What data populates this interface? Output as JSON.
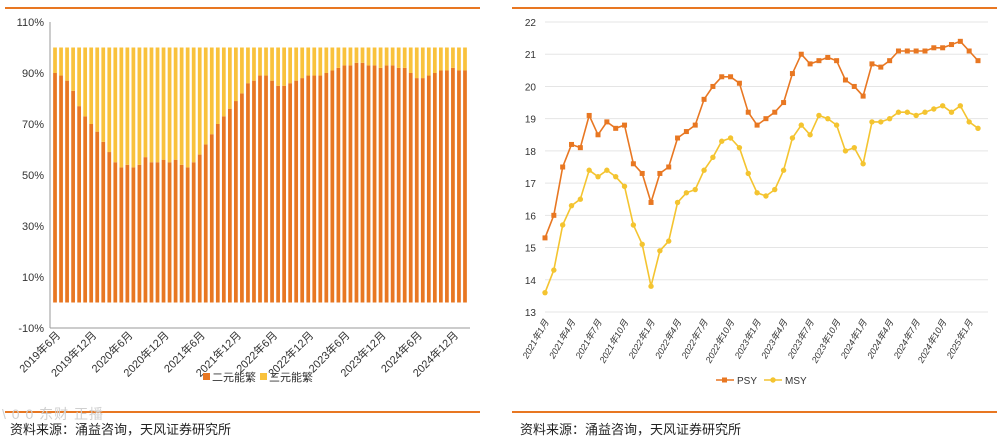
{
  "colors": {
    "rule": "#E87722",
    "binary": "#E87722",
    "ternary": "#F9C23C",
    "psy": "#E87722",
    "msy": "#F4C430",
    "axis": "#999999",
    "grid": "#e5e5e5"
  },
  "source_left": "资料来源：涌益咨询，天风证券研究所",
  "source_right": "资料来源：涌益咨询，天风证券研究所",
  "watermark": "\\ 0 0 东财  正播",
  "chart_data": [
    {
      "type": "bar",
      "stacked": true,
      "y_ticks": [
        "110%",
        "90%",
        "70%",
        "50%",
        "30%",
        "10%",
        "-10%"
      ],
      "ylim": [
        -0.1,
        1.1
      ],
      "x_tick_labels": [
        "2019年6月",
        "2019年12月",
        "2020年6月",
        "2020年12月",
        "2021年6月",
        "2021年12月",
        "2022年6月",
        "2022年12月",
        "2023年6月",
        "2023年12月",
        "2024年6月",
        "2024年12月"
      ],
      "x_start": "2019年6月",
      "series": [
        {
          "name": "二元能繁",
          "values": [
            0.9,
            0.89,
            0.87,
            0.83,
            0.77,
            0.73,
            0.7,
            0.67,
            0.63,
            0.59,
            0.55,
            0.53,
            0.54,
            0.53,
            0.54,
            0.57,
            0.55,
            0.55,
            0.56,
            0.55,
            0.56,
            0.54,
            0.53,
            0.55,
            0.58,
            0.62,
            0.66,
            0.7,
            0.73,
            0.76,
            0.79,
            0.82,
            0.86,
            0.87,
            0.89,
            0.89,
            0.87,
            0.85,
            0.85,
            0.86,
            0.87,
            0.88,
            0.89,
            0.89,
            0.89,
            0.9,
            0.91,
            0.92,
            0.93,
            0.93,
            0.94,
            0.94,
            0.93,
            0.93,
            0.92,
            0.93,
            0.93,
            0.92,
            0.92,
            0.9,
            0.88,
            0.88,
            0.89,
            0.9,
            0.91,
            0.91,
            0.92,
            0.91,
            0.91
          ]
        },
        {
          "name": "三元能繁",
          "values": [
            0.1,
            0.11,
            0.13,
            0.17,
            0.23,
            0.27,
            0.3,
            0.33,
            0.37,
            0.41,
            0.45,
            0.47,
            0.46,
            0.47,
            0.46,
            0.43,
            0.45,
            0.45,
            0.44,
            0.45,
            0.44,
            0.46,
            0.47,
            0.45,
            0.42,
            0.38,
            0.34,
            0.3,
            0.27,
            0.24,
            0.21,
            0.18,
            0.14,
            0.13,
            0.11,
            0.11,
            0.13,
            0.15,
            0.15,
            0.14,
            0.13,
            0.12,
            0.11,
            0.11,
            0.11,
            0.1,
            0.09,
            0.08,
            0.07,
            0.07,
            0.06,
            0.06,
            0.07,
            0.07,
            0.08,
            0.07,
            0.07,
            0.08,
            0.08,
            0.1,
            0.12,
            0.12,
            0.11,
            0.1,
            0.09,
            0.09,
            0.08,
            0.09,
            0.09
          ]
        }
      ]
    },
    {
      "type": "line",
      "y_ticks": [
        "22",
        "21",
        "20",
        "19",
        "18",
        "17",
        "16",
        "15",
        "14",
        "13"
      ],
      "ylim": [
        13,
        22
      ],
      "x_tick_labels": [
        "2021年1月",
        "2021年4月",
        "2021年7月",
        "2021年10月",
        "2022年1月",
        "2022年4月",
        "2022年7月",
        "2022年10月",
        "2023年1月",
        "2023年4月",
        "2023年7月",
        "2023年10月",
        "2024年1月",
        "2024年4月",
        "2024年7月",
        "2024年10月",
        "2025年1月"
      ],
      "series": [
        {
          "name": "PSY",
          "values": [
            15.3,
            16.0,
            17.5,
            18.2,
            18.1,
            19.1,
            18.5,
            18.9,
            18.7,
            18.8,
            17.6,
            17.3,
            16.4,
            17.3,
            17.5,
            18.4,
            18.6,
            18.8,
            19.6,
            20.0,
            20.3,
            20.3,
            20.1,
            19.2,
            18.8,
            19.0,
            19.2,
            19.5,
            20.4,
            21.0,
            20.7,
            20.8,
            20.9,
            20.8,
            20.2,
            20.0,
            19.7,
            20.7,
            20.6,
            20.8,
            21.1,
            21.1,
            21.1,
            21.1,
            21.2,
            21.2,
            21.3,
            21.4,
            21.1,
            20.8
          ]
        },
        {
          "name": "MSY",
          "values": [
            13.6,
            14.3,
            15.7,
            16.3,
            16.5,
            17.4,
            17.2,
            17.4,
            17.2,
            16.9,
            15.7,
            15.1,
            13.8,
            14.9,
            15.2,
            16.4,
            16.7,
            16.8,
            17.4,
            17.8,
            18.3,
            18.4,
            18.1,
            17.3,
            16.7,
            16.6,
            16.8,
            17.4,
            18.4,
            18.8,
            18.5,
            19.1,
            19.0,
            18.8,
            18.0,
            18.1,
            17.6,
            18.9,
            18.9,
            19.0,
            19.2,
            19.2,
            19.1,
            19.2,
            19.3,
            19.4,
            19.2,
            19.4,
            18.9,
            18.7
          ]
        }
      ]
    }
  ]
}
